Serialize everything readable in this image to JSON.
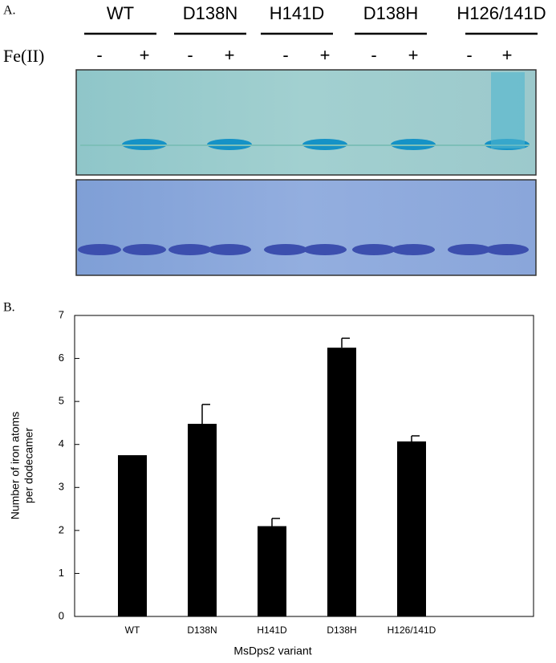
{
  "panel_a": {
    "panel_label": "A.",
    "variants": [
      "WT",
      "D138N",
      "H141D",
      "D138H",
      "H126/141D"
    ],
    "fe_label": "Fe(II)",
    "lanes": [
      "-",
      "+",
      "-",
      "+",
      "-",
      "+",
      "-",
      "+",
      "-",
      "+"
    ]
  },
  "chart_data": {
    "type": "bar",
    "panel_label": "B.",
    "categories": [
      "WT",
      "D138N",
      "H141D",
      "D138H",
      "H126/141D"
    ],
    "values": [
      3.75,
      4.48,
      2.1,
      6.25,
      4.07
    ],
    "errors": [
      null,
      0.45,
      0.18,
      0.22,
      0.13
    ],
    "color": "#000000",
    "ylim": [
      0,
      7
    ],
    "yticks": [
      0,
      1,
      2,
      3,
      4,
      5,
      6,
      7
    ],
    "xlabel": "MsDps2 variant",
    "ylabel": [
      "Number of iron atoms",
      "per dodecamer"
    ]
  }
}
